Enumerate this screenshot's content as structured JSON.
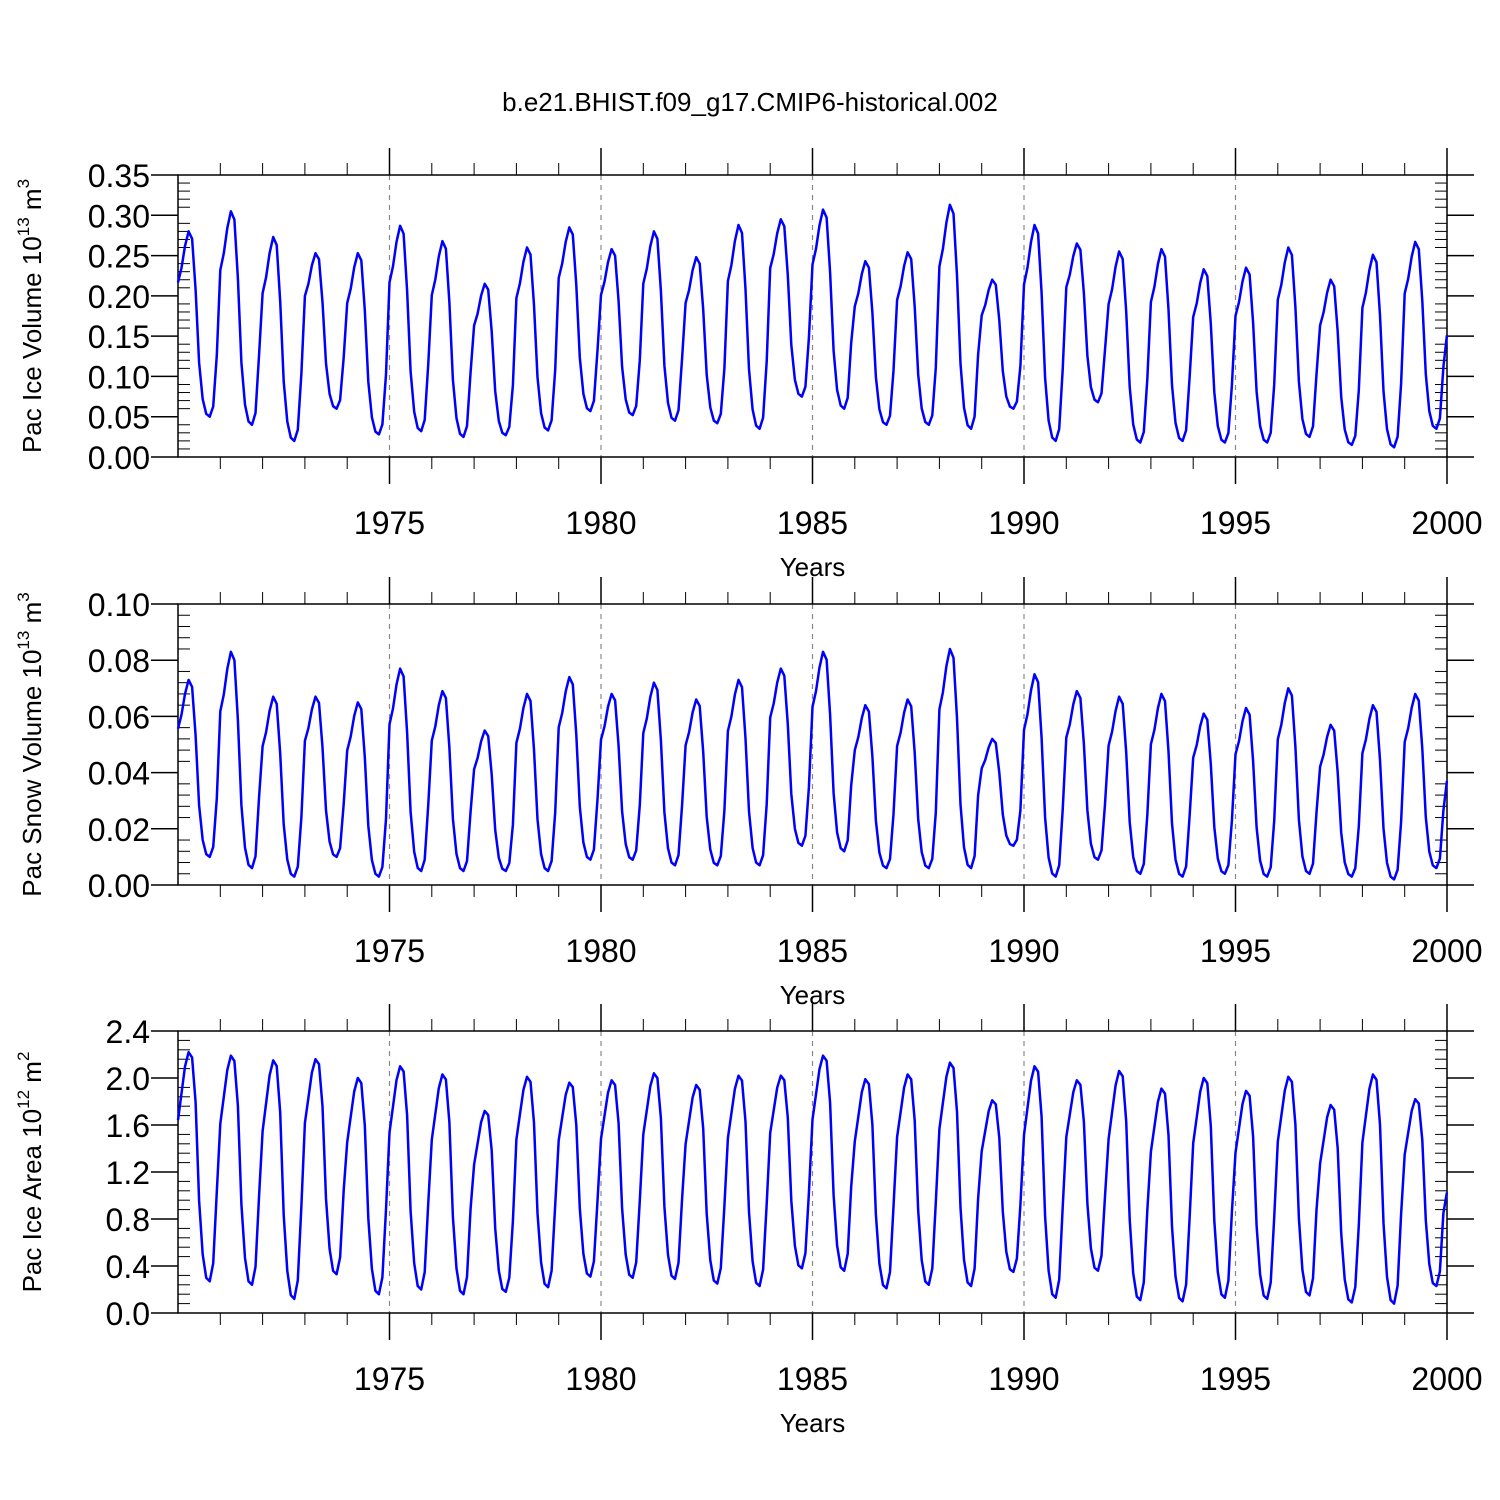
{
  "figure_title": "b.e21.BHIST.f09_g17.CMIP6-historical.002",
  "colors": {
    "line": "#0000ff",
    "grid": "#888888",
    "axes": "#000000"
  },
  "chart_data": [
    {
      "type": "line",
      "title": "b.e21.BHIST.f09_g17.CMIP6-historical.002",
      "xlabel": "Years",
      "ylabel": "Pac Ice Volume 10^13 m^3",
      "ylabel_parts": {
        "pre": "Pac Ice Volume 10",
        "exp1": "13",
        "mid": " m",
        "exp2": "3"
      },
      "xlim": [
        1970.0,
        2000.0
      ],
      "ylim": [
        0.0,
        0.35
      ],
      "xticks": [
        1975,
        1980,
        1985,
        1990,
        1995,
        2000
      ],
      "xtick_labels": [
        "1975",
        "1980",
        "1985",
        "1990",
        "1995",
        "2000"
      ],
      "yticks": [
        0.0,
        0.05,
        0.1,
        0.15,
        0.2,
        0.25,
        0.3,
        0.35
      ],
      "ytick_labels": [
        "0.00",
        "0.05",
        "0.10",
        "0.15",
        "0.20",
        "0.25",
        "0.30",
        "0.35"
      ],
      "grid": "dashed vertical lines at x ticks",
      "series": [
        {
          "x_start": 1970.0,
          "x_step": 0.08333,
          "values": []
        }
      ],
      "annual_cycle": [
        1.0,
        1.1,
        1.25,
        1.35,
        1.3,
        0.95,
        0.45,
        0.2,
        0.1,
        0.08,
        0.15,
        0.5
      ],
      "annual_max": [
        0.28,
        0.305,
        0.273,
        0.253,
        0.253,
        0.287,
        0.268,
        0.215,
        0.26,
        0.285,
        0.258,
        0.28,
        0.248,
        0.288,
        0.295,
        0.307,
        0.243,
        0.254,
        0.313,
        0.22,
        0.288,
        0.265,
        0.255,
        0.258,
        0.233,
        0.235,
        0.26,
        0.22,
        0.251,
        0.267
      ],
      "annual_min": [
        0.05,
        0.04,
        0.02,
        0.06,
        0.028,
        0.032,
        0.025,
        0.027,
        0.033,
        0.057,
        0.052,
        0.045,
        0.042,
        0.035,
        0.075,
        0.06,
        0.04,
        0.04,
        0.035,
        0.06,
        0.02,
        0.068,
        0.018,
        0.02,
        0.018,
        0.018,
        0.025,
        0.015,
        0.012,
        0.035
      ]
    },
    {
      "type": "line",
      "xlabel": "Years",
      "ylabel": "Pac Snow Volume 10^13 m^3",
      "ylabel_parts": {
        "pre": "Pac Snow Volume 10",
        "exp1": "13",
        "mid": " m",
        "exp2": "3"
      },
      "xlim": [
        1970.0,
        2000.0
      ],
      "ylim": [
        0.0,
        0.1
      ],
      "xticks": [
        1975,
        1980,
        1985,
        1990,
        1995,
        2000
      ],
      "xtick_labels": [
        "1975",
        "1980",
        "1985",
        "1990",
        "1995",
        "2000"
      ],
      "yticks": [
        0.0,
        0.02,
        0.04,
        0.06,
        0.08,
        0.1
      ],
      "ytick_labels": [
        "0.00",
        "0.02",
        "0.04",
        "0.06",
        "0.08",
        "0.10"
      ],
      "grid": "dashed vertical lines at x ticks",
      "series": [
        {
          "x_start": 1970.0,
          "x_step": 0.08333,
          "values": []
        }
      ],
      "annual_cycle": [
        1.0,
        1.1,
        1.25,
        1.35,
        1.3,
        0.95,
        0.45,
        0.2,
        0.1,
        0.08,
        0.15,
        0.5
      ],
      "annual_max": [
        0.073,
        0.083,
        0.067,
        0.067,
        0.065,
        0.077,
        0.069,
        0.055,
        0.068,
        0.074,
        0.068,
        0.072,
        0.066,
        0.073,
        0.077,
        0.083,
        0.064,
        0.066,
        0.084,
        0.052,
        0.075,
        0.069,
        0.067,
        0.068,
        0.061,
        0.063,
        0.07,
        0.057,
        0.064,
        0.068
      ],
      "annual_min": [
        0.01,
        0.006,
        0.003,
        0.01,
        0.003,
        0.005,
        0.005,
        0.005,
        0.005,
        0.009,
        0.009,
        0.007,
        0.007,
        0.007,
        0.014,
        0.012,
        0.006,
        0.006,
        0.006,
        0.014,
        0.003,
        0.009,
        0.004,
        0.003,
        0.004,
        0.003,
        0.004,
        0.003,
        0.002,
        0.006
      ]
    },
    {
      "type": "line",
      "xlabel": "Years",
      "ylabel": "Pac Ice Area 10^12 m^2",
      "ylabel_parts": {
        "pre": "Pac Ice Area 10",
        "exp1": "12",
        "mid": " m",
        "exp2": "2"
      },
      "xlim": [
        1970.0,
        2000.0
      ],
      "ylim": [
        0.0,
        2.4
      ],
      "xticks": [
        1975,
        1980,
        1985,
        1990,
        1995,
        2000
      ],
      "xtick_labels": [
        "1975",
        "1980",
        "1985",
        "1990",
        "1995",
        "2000"
      ],
      "yticks": [
        0.0,
        0.4,
        0.8,
        1.2,
        1.6,
        2.0,
        2.4
      ],
      "ytick_labels": [
        "0.0",
        "0.4",
        "0.8",
        "1.2",
        "1.6",
        "2.0",
        "2.4"
      ],
      "grid": "dashed vertical lines at x ticks",
      "series": [
        {
          "x_start": 1970.0,
          "x_step": 0.08333,
          "values": []
        }
      ],
      "annual_cycle": [
        1.0,
        1.15,
        1.3,
        1.38,
        1.35,
        1.1,
        0.55,
        0.25,
        0.12,
        0.1,
        0.2,
        0.6
      ],
      "annual_max": [
        2.22,
        2.19,
        2.15,
        2.16,
        2.0,
        2.1,
        2.03,
        1.72,
        2.01,
        1.96,
        1.98,
        2.04,
        1.94,
        2.02,
        2.02,
        2.19,
        1.99,
        2.03,
        2.13,
        1.81,
        2.1,
        1.98,
        2.06,
        1.91,
        2.0,
        1.89,
        2.01,
        1.77,
        2.03,
        1.82
      ],
      "annual_min": [
        0.27,
        0.24,
        0.12,
        0.33,
        0.16,
        0.2,
        0.16,
        0.18,
        0.22,
        0.31,
        0.3,
        0.29,
        0.25,
        0.23,
        0.38,
        0.36,
        0.21,
        0.24,
        0.23,
        0.35,
        0.13,
        0.36,
        0.11,
        0.1,
        0.13,
        0.12,
        0.15,
        0.09,
        0.08,
        0.23
      ]
    }
  ]
}
